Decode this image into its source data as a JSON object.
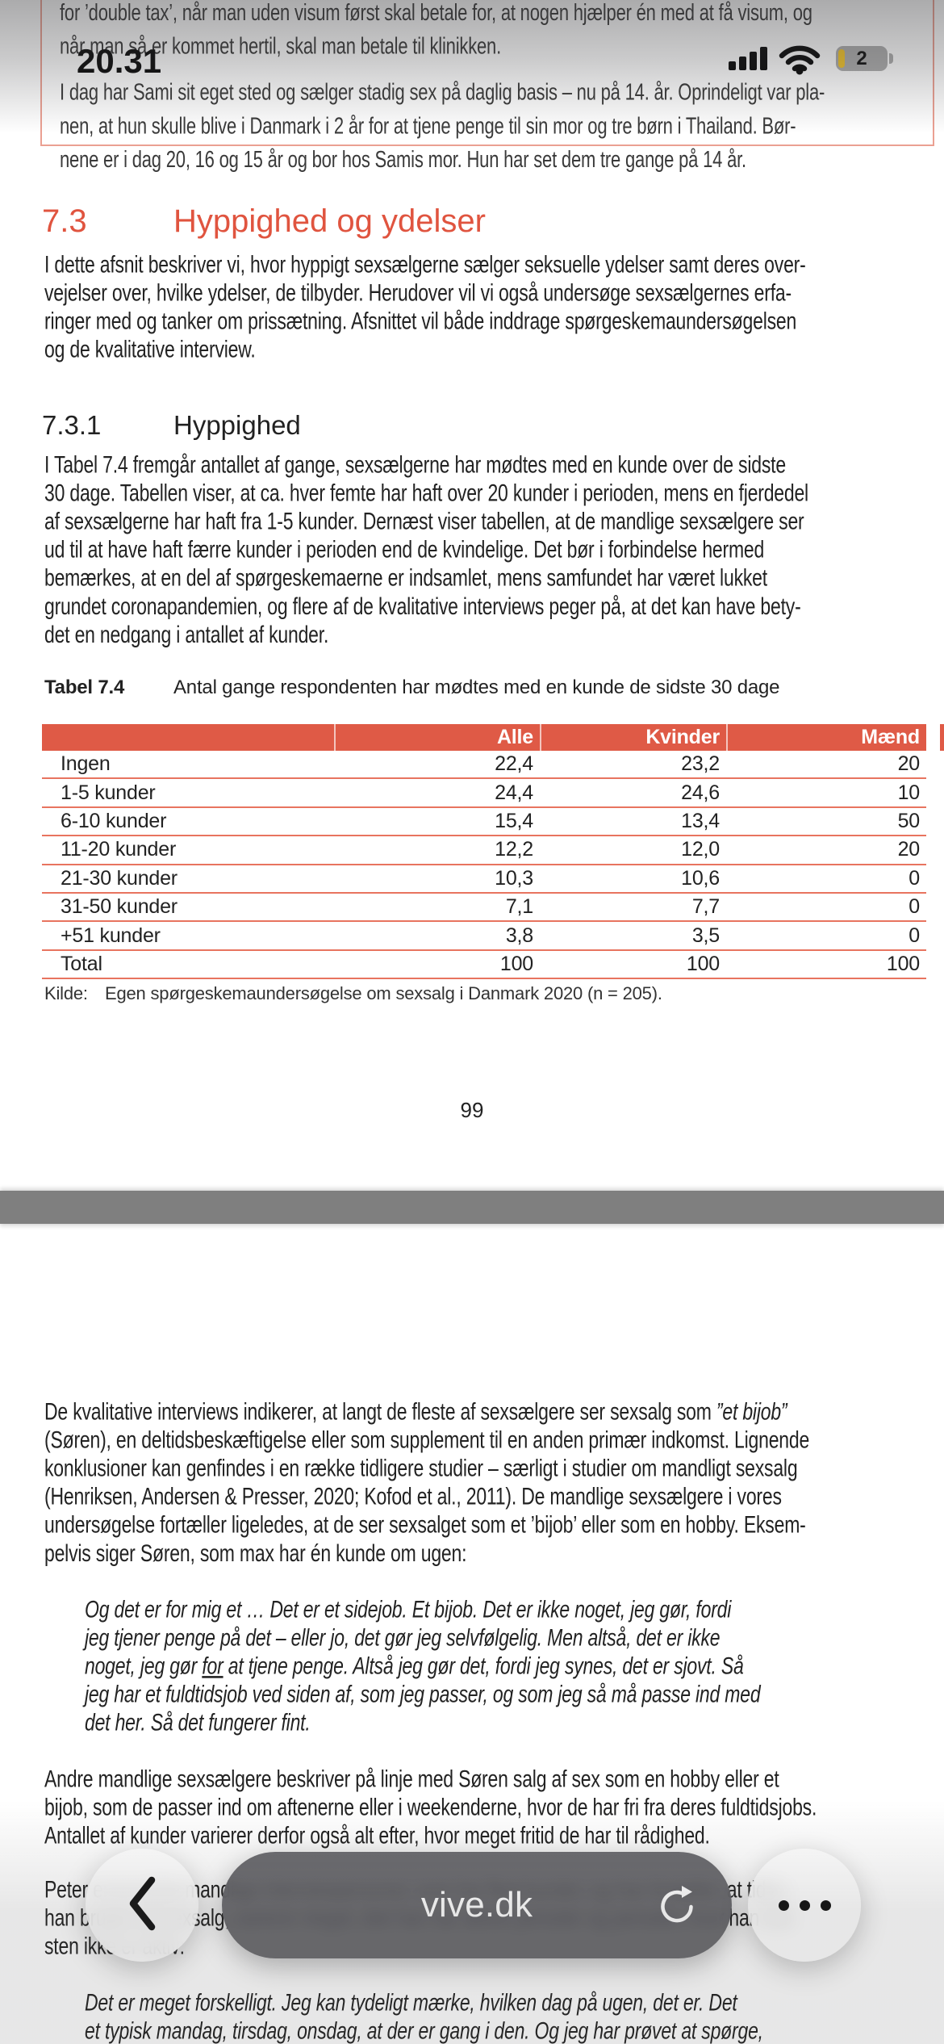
{
  "colors": {
    "accent": "#e0543f",
    "table_red": "#df5a46",
    "row_border": "#e8745f",
    "box_border": "#eba092",
    "band": "#7f7f7f",
    "battery_yellow": "#f2c52d"
  },
  "status_bar": {
    "time": "20.31",
    "battery_percent": "2",
    "icons": [
      "cellular-signal-icon",
      "wifi-icon",
      "battery-icon"
    ]
  },
  "page1": {
    "quote_box": {
      "paragraph1": [
        "for ’double tax’, når man uden visum først skal betale for, at nogen hjælper én med at få visum, og",
        "når man så er kommet hertil, skal man betale til klinikken."
      ],
      "paragraph2": [
        "I dag har Sami sit eget sted og sælger stadig sex på daglig basis – nu på 14. år. Oprindeligt var pla-",
        "nen, at hun skulle blive i Danmark i 2 år for at tjene penge til sin mor og tre børn i Thailand. Bør-",
        "nene er i dag 20, 16 og 15 år og bor hos Samis mor. Hun har set dem tre gange på 14 år."
      ]
    },
    "heading": {
      "number": "7.3",
      "title": "Hyppighed og ydelser"
    },
    "intro_lines": [
      "I dette afsnit beskriver vi, hvor hyppigt sexsælgerne sælger seksuelle ydelser samt deres over-",
      "vejelser over, hvilke ydelser, de tilbyder. Herudover vil vi også undersøge sexsælgernes erfa-",
      "ringer med og tanker om prissætning. Afsnittet vil både inddrage spørgeskemaundersøgelsen",
      "og de kvalitative interview."
    ],
    "subheading": {
      "number": "7.3.1",
      "title": "Hyppighed"
    },
    "body_lines": [
      "I Tabel 7.4 fremgår antallet af gange, sexsælgerne har mødtes med en kunde over de sidste",
      "30 dage. Tabellen viser, at ca. hver femte har haft over 20 kunder i perioden, mens en fjerdedel",
      "af sexsælgerne har haft fra 1-5 kunder. Dernæst viser tabellen, at de mandlige sexsælgere ser",
      "ud til at have haft færre kunder i perioden end de kvindelige. Det bør i forbindelse hermed",
      "bemærkes, at en del af spørgeskemaerne er indsamlet, mens samfundet har været lukket",
      "grundet coronapandemien, og flere af de kvalitative interviews peger på, at det kan have bety-",
      "det en nedgang i antallet af kunder."
    ],
    "table_caption": {
      "label": "Tabel 7.4",
      "text": "Antal gange respondenten har mødtes med en kunde de sidste 30 dage"
    },
    "table": {
      "headers": [
        "",
        "Alle",
        "Kvinder",
        "Mænd"
      ],
      "rows": [
        [
          "Ingen",
          "22,4",
          "23,2",
          "20"
        ],
        [
          "1-5 kunder",
          "24,4",
          "24,6",
          "10"
        ],
        [
          "6-10 kunder",
          "15,4",
          "13,4",
          "50"
        ],
        [
          "11-20 kunder",
          "12,2",
          "12,0",
          "20"
        ],
        [
          "21-30 kunder",
          "10,3",
          "10,6",
          "0"
        ],
        [
          "31-50 kunder",
          "7,1",
          "7,7",
          "0"
        ],
        [
          "+51 kunder",
          "3,8",
          "3,5",
          "0"
        ],
        [
          "Total",
          "100",
          "100",
          "100"
        ]
      ]
    },
    "kilde": {
      "label": "Kilde:",
      "text": "Egen spørgeskemaundersøgelse om sexsalg i Danmark 2020 (n = 205)."
    },
    "page_number": "99"
  },
  "page2": {
    "para_a_lines": [
      {
        "segs": [
          {
            "t": "De kvalitative interviews indikerer, at langt de fleste af sexsælgere ser sexsalg som "
          },
          {
            "t": "”et bijob”",
            "s": "i"
          }
        ]
      },
      "(Søren), en deltidsbeskæftigelse eller som supplement til en anden primær indkomst. Lignende",
      "konklusioner kan genfindes i en række tidligere studier – særligt i studier om mandligt sexsalg",
      "(Henriksen, Andersen & Presser, 2020; Kofod et al., 2011). De mandlige sexsælgere i vores",
      "undersøgelse fortæller ligeledes, at de ser sexsalget som et ’bijob’ eller som en hobby. Eksem-",
      "pelvis siger Søren, som max har én kunde om ugen:"
    ],
    "quote1_lines": [
      "Og det er for mig et … Det er et sidejob. Et bijob. Det er ikke noget, jeg gør, fordi",
      "jeg tjener penge på det – eller jo, det gør jeg selvfølgelig. Men altså, det er ikke",
      {
        "segs": [
          {
            "t": "noget, jeg gør "
          },
          {
            "t": "for",
            "s": "u"
          },
          {
            "t": " at tjene penge. Altså jeg gør det, fordi jeg synes, det er sjovt. Så"
          }
        ]
      },
      "jeg har et fuldtidsjob ved siden af, som jeg passer, og som jeg så må passe ind med",
      "det her. Så det fungerer fint."
    ],
    "para_b_lines": [
      "Andre mandlige sexsælgere beskriver på linje med Søren salg af sex som en hobby eller et",
      "bijob, som de passer ind om aftenerne eller i weekenderne, hvor de har fri fra deres fuldtidsjobs.",
      "Antallet af kunder varierer derfor også alt efter, hvor meget fritid de har til rådighed."
    ],
    "para_c_lines": [
      "Peter er en af de mandlige interviewpersoner, som har flest kunder, og han fortæller, at tiden,",
      "han bruger på sexsalg, varierer meget, idet han har aktive perioder og perioder, hvor han næ-",
      "sten ikke er aktiv:"
    ],
    "quote2_lines": [
      "Det er meget forskelligt. Jeg kan tydeligt mærke, hvilken dag på ugen, det er. Det",
      "et typisk mandag, tirsdag, onsdag, at der er gang i den. Og jeg har prøvet at spørge,"
    ]
  },
  "toolbar": {
    "url": "vive.dk",
    "icons": [
      "chevron-left-icon",
      "reload-icon",
      "ellipsis-icon"
    ]
  }
}
